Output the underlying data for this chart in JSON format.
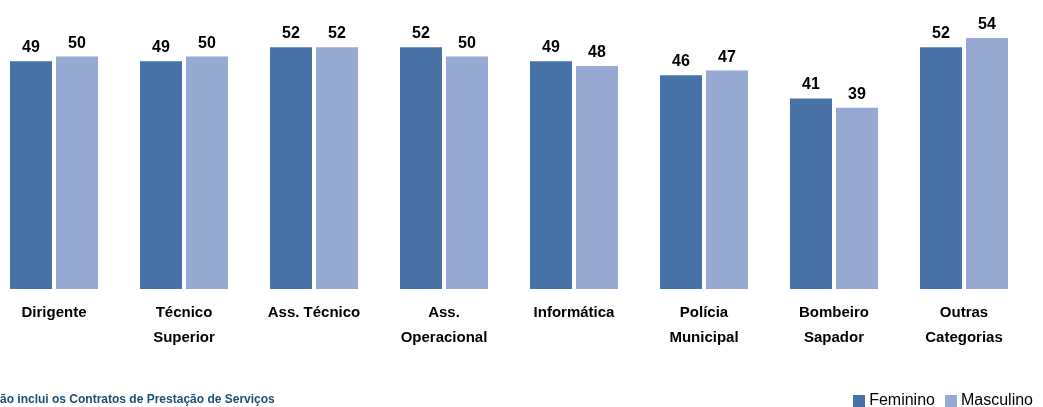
{
  "chart_data": {
    "type": "bar",
    "categories": [
      "Dirigente",
      "Técnico Superior",
      "Ass. Técnico",
      "Ass. Operacional",
      "Informática",
      "Polícia Municipal",
      "Bombeiro Sapador",
      "Outras Categorias"
    ],
    "series": [
      {
        "name": "Feminino",
        "color": "#4672a6",
        "values": [
          49,
          49,
          52,
          52,
          49,
          46,
          41,
          52
        ]
      },
      {
        "name": "Masculino",
        "color": "#95a9d2",
        "values": [
          50,
          50,
          52,
          50,
          48,
          47,
          39,
          54
        ]
      }
    ],
    "data_labels": true,
    "grid": false,
    "legend": "bottom right",
    "annotations": [
      "ão inclui os Contratos de Prestação de Serviços"
    ]
  }
}
